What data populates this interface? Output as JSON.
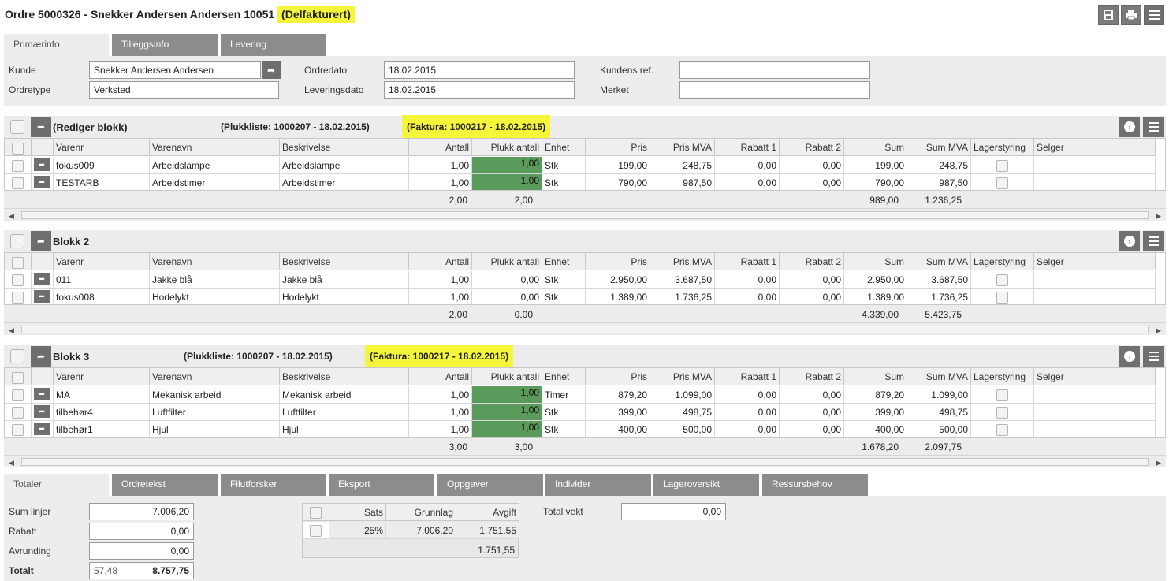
{
  "header": {
    "title": "Ordre 5000326 - Snekker Andersen Andersen 10051",
    "status": "(Delfakturert)",
    "save_icon": "save-icon",
    "print_icon": "print-icon",
    "menu_icon": "menu-icon"
  },
  "tabs": [
    "Primærinfo",
    "Tilleggsinfo",
    "Levering"
  ],
  "form": {
    "kunde_label": "Kunde",
    "kunde_value": "Snekker Andersen Andersen",
    "ordretype_label": "Ordretype",
    "ordretype_value": "Verksted",
    "ordredato_label": "Ordredato",
    "ordredato_value": "18.02.2015",
    "leveringsdato_label": "Leveringsdato",
    "leveringsdato_value": "18.02.2015",
    "kundensref_label": "Kundens ref.",
    "kundensref_value": "",
    "merket_label": "Merket",
    "merket_value": ""
  },
  "columns": [
    "Varenr",
    "Varenavn",
    "Beskrivelse",
    "Antall",
    "Plukk antall",
    "Enhet",
    "Pris",
    "Pris MVA",
    "Rabatt 1",
    "Rabatt 2",
    "Sum",
    "Sum MVA",
    "Lagerstyring",
    "Selger"
  ],
  "blocks": [
    {
      "name": "(Rediger blokk)",
      "plukkliste": "(Plukkliste: 1000207 - 18.02.2015)",
      "faktura": "(Faktura: 1000217 - 18.02.2015)",
      "rows": [
        {
          "varenr": "fokus009",
          "varenavn": "Arbeidslampe",
          "beskrivelse": "Arbeidslampe",
          "antall": "1,00",
          "plukk": "1,00",
          "picked": true,
          "enhet": "Stk",
          "pris": "199,00",
          "prismva": "248,75",
          "rabatt1": "0,00",
          "rabatt2": "0,00",
          "sum": "199,00",
          "summva": "248,75"
        },
        {
          "varenr": "TESTARB",
          "varenavn": "Arbeidstimer",
          "beskrivelse": "Arbeidstimer",
          "antall": "1,00",
          "plukk": "1,00",
          "picked": true,
          "enhet": "Stk",
          "pris": "790,00",
          "prismva": "987,50",
          "rabatt1": "0,00",
          "rabatt2": "0,00",
          "sum": "790,00",
          "summva": "987,50"
        }
      ],
      "totals": {
        "antall": "2,00",
        "plukk": "2,00",
        "sum": "989,00",
        "summva": "1.236,25"
      }
    },
    {
      "name": "Blokk 2",
      "plukkliste": "",
      "faktura": "",
      "rows": [
        {
          "varenr": "011",
          "varenavn": "Jakke blå",
          "beskrivelse": "Jakke blå",
          "antall": "1,00",
          "plukk": "0,00",
          "picked": false,
          "enhet": "Stk",
          "pris": "2.950,00",
          "prismva": "3.687,50",
          "rabatt1": "0,00",
          "rabatt2": "0,00",
          "sum": "2.950,00",
          "summva": "3.687,50"
        },
        {
          "varenr": "fokus008",
          "varenavn": "Hodelykt",
          "beskrivelse": "Hodelykt",
          "antall": "1,00",
          "plukk": "0,00",
          "picked": false,
          "enhet": "Stk",
          "pris": "1.389,00",
          "prismva": "1.736,25",
          "rabatt1": "0,00",
          "rabatt2": "0,00",
          "sum": "1.389,00",
          "summva": "1.736,25"
        }
      ],
      "totals": {
        "antall": "2,00",
        "plukk": "0,00",
        "sum": "4.339,00",
        "summva": "5.423,75"
      }
    },
    {
      "name": "Blokk 3",
      "plukkliste": "(Plukkliste: 1000207 - 18.02.2015)",
      "faktura": "(Faktura: 1000217 - 18.02.2015)",
      "rows": [
        {
          "varenr": "MA",
          "varenavn": "Mekanisk arbeid",
          "beskrivelse": "Mekanisk arbeid",
          "antall": "1,00",
          "plukk": "1,00",
          "picked": true,
          "enhet": "Timer",
          "pris": "879,20",
          "prismva": "1.099,00",
          "rabatt1": "0,00",
          "rabatt2": "0,00",
          "sum": "879,20",
          "summva": "1.099,00"
        },
        {
          "varenr": "tilbehør4",
          "varenavn": "Luftfilter",
          "beskrivelse": "Luftfilter",
          "antall": "1,00",
          "plukk": "1,00",
          "picked": true,
          "enhet": "Stk",
          "pris": "399,00",
          "prismva": "498,75",
          "rabatt1": "0,00",
          "rabatt2": "0,00",
          "sum": "399,00",
          "summva": "498,75"
        },
        {
          "varenr": "tilbehør1",
          "varenavn": "Hjul",
          "beskrivelse": "Hjul",
          "antall": "1,00",
          "plukk": "1,00",
          "picked": true,
          "enhet": "Stk",
          "pris": "400,00",
          "prismva": "500,00",
          "rabatt1": "0,00",
          "rabatt2": "0,00",
          "sum": "400,00",
          "summva": "500,00"
        }
      ],
      "totals": {
        "antall": "3,00",
        "plukk": "3,00",
        "sum": "1.678,20",
        "summva": "2.097,75"
      }
    }
  ],
  "bottom_tabs": [
    "Totaler",
    "Ordretekst",
    "Filutforsker",
    "Eksport",
    "Oppgaver",
    "Individer",
    "Lageroversikt",
    "Ressursbehov"
  ],
  "totals": {
    "sum_linjer_label": "Sum linjer",
    "sum_linjer": "7.006,20",
    "rabatt_label": "Rabatt",
    "rabatt": "0,00",
    "avrunding_label": "Avrunding",
    "avrunding": "0,00",
    "totalt_label": "Totalt",
    "totalt_small": "57,48",
    "totalt": "8.757,75",
    "total_vekt_label": "Total vekt",
    "total_vekt": "0,00"
  },
  "vat": {
    "headers": [
      "Sats",
      "Grunnlag",
      "Avgift"
    ],
    "rows": [
      {
        "sats": "25%",
        "grunnlag": "7.006,20",
        "avgift": "1.751,55"
      }
    ],
    "total": "1.751,55"
  }
}
